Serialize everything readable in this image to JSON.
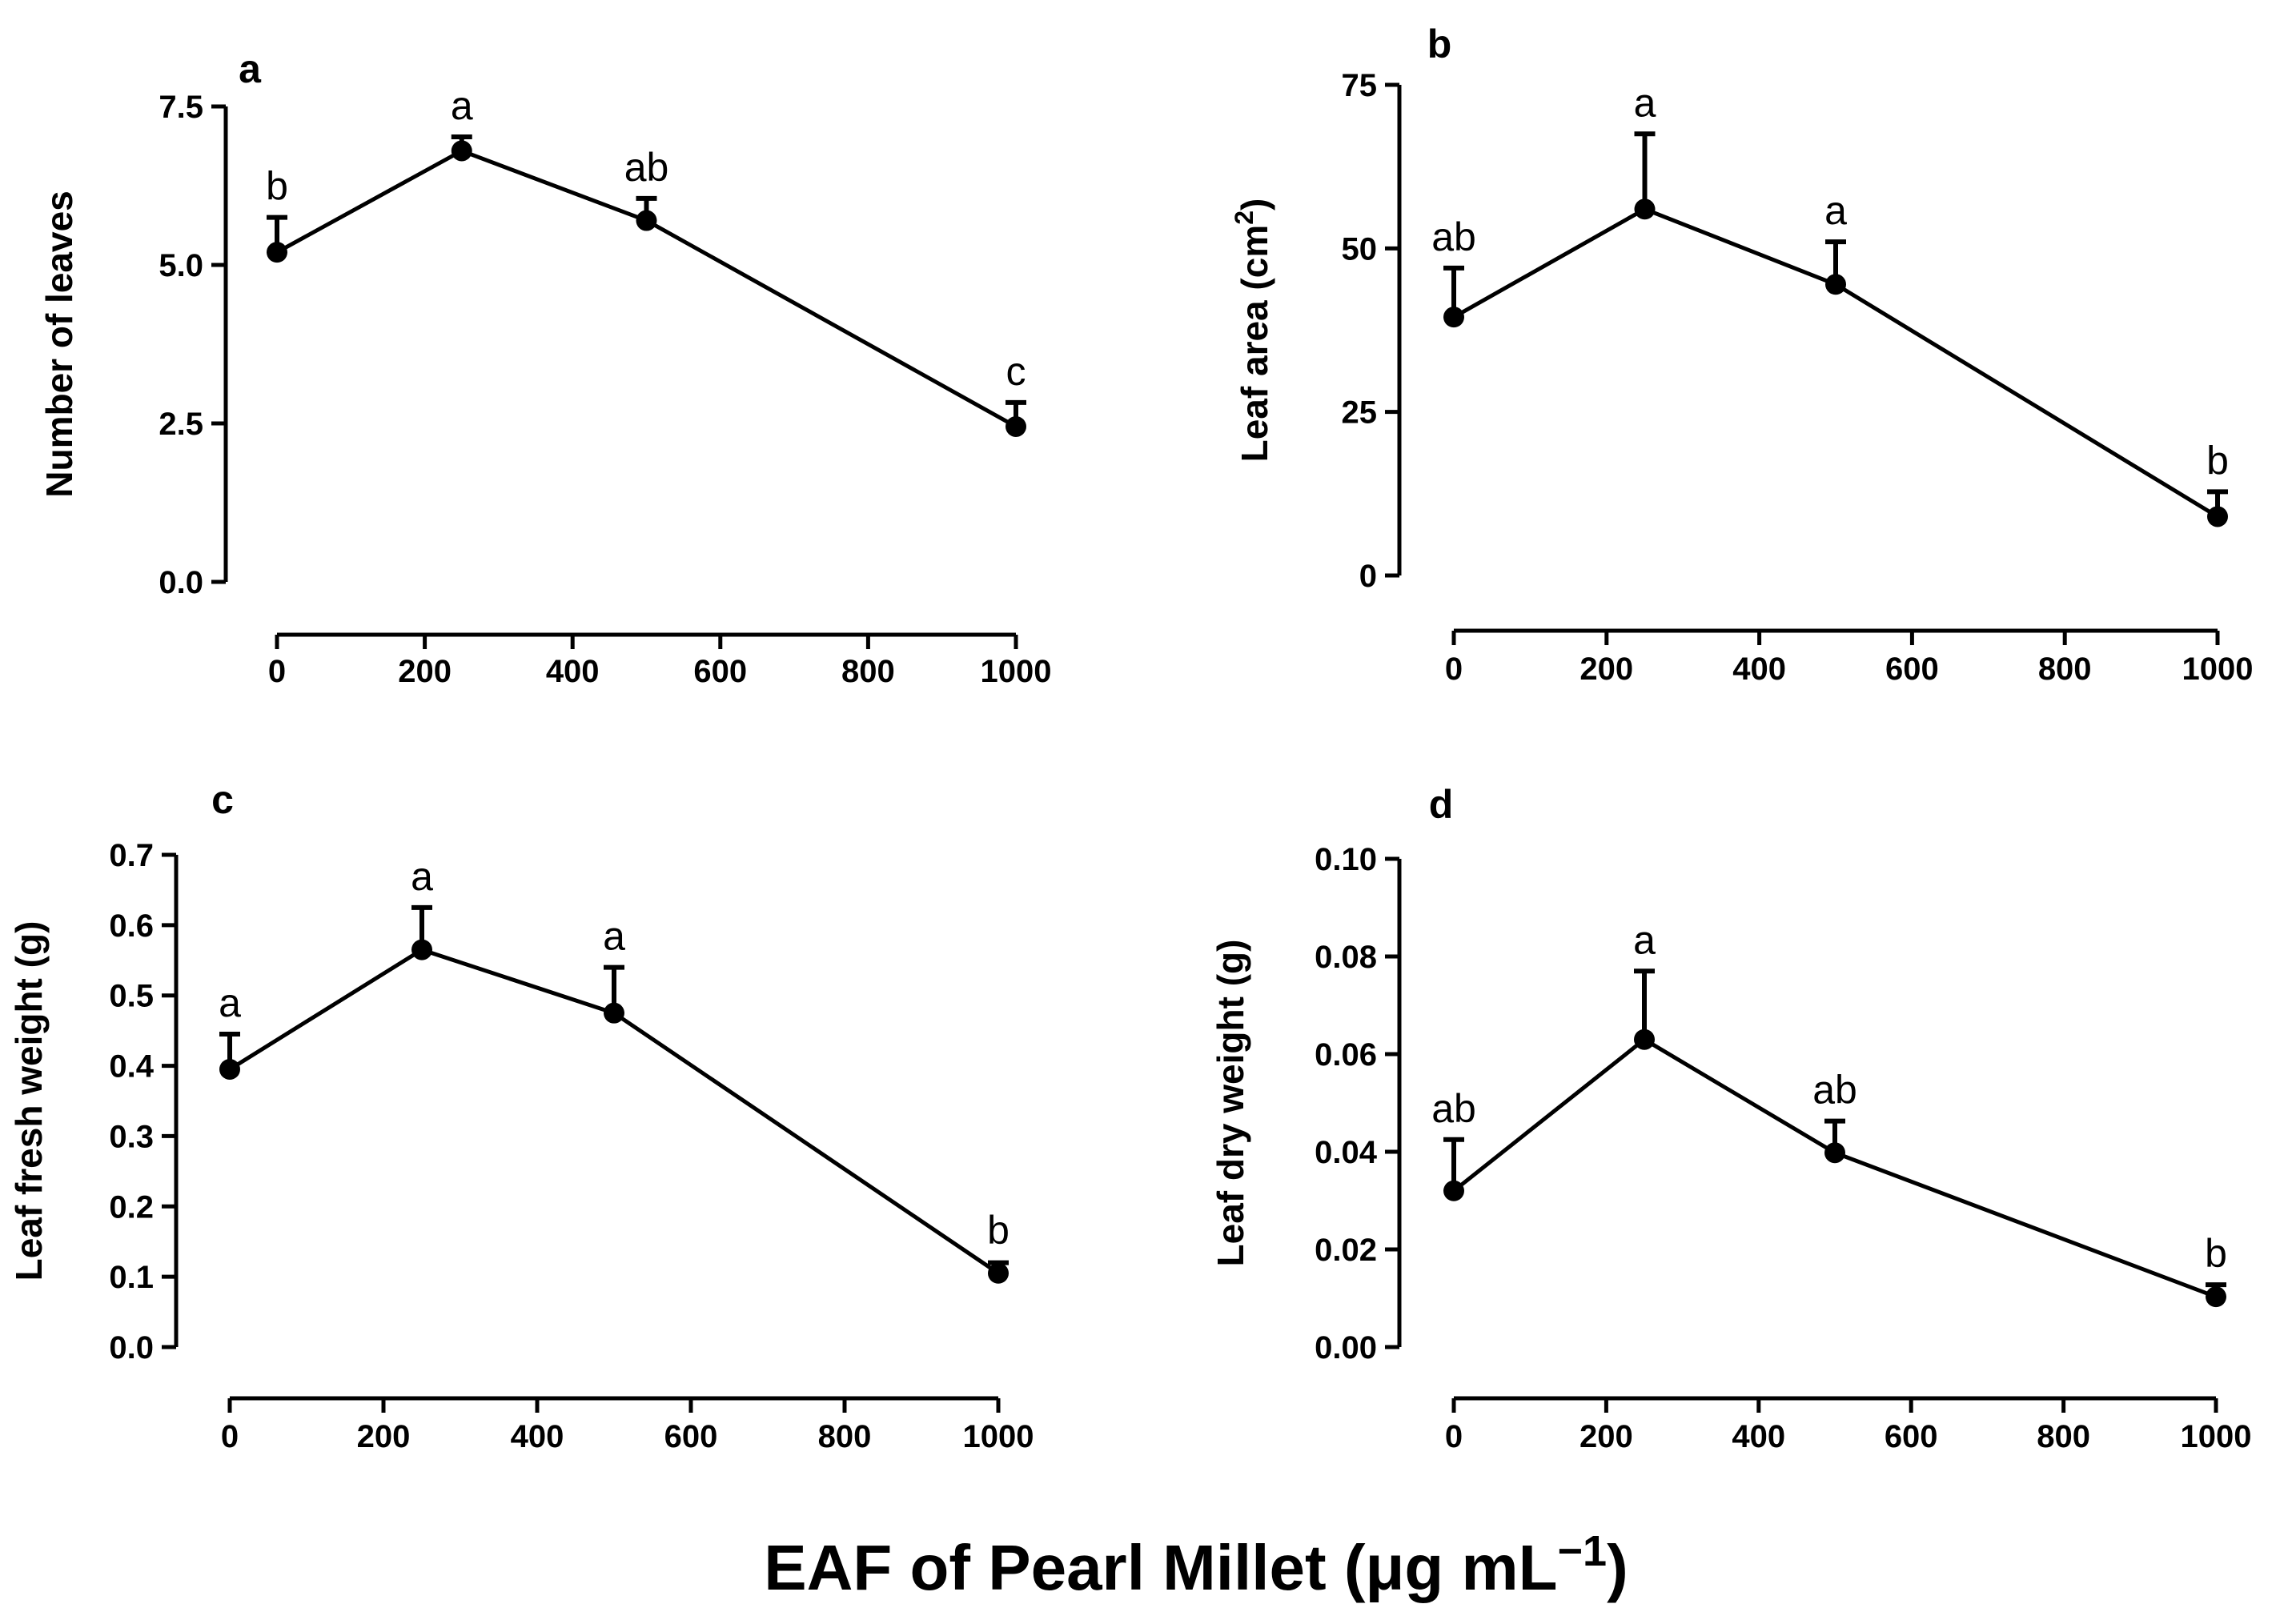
{
  "chart_data": [
    {
      "panel": "a",
      "type": "line",
      "ylabel": "Number of leaves",
      "ylabel_sup": "",
      "ylabel_tail": "",
      "x": [
        0,
        250,
        500,
        1000
      ],
      "values": [
        5.2,
        6.8,
        5.7,
        2.45
      ],
      "errors": [
        0.55,
        0.22,
        0.35,
        0.38
      ],
      "sig_letters": [
        "b",
        "a",
        "ab",
        "c"
      ],
      "ylim": [
        0,
        7.5
      ],
      "yticks": [
        "0.0",
        "2.5",
        "5.0",
        "7.5"
      ],
      "xlim": [
        0,
        1000
      ],
      "xticks": [
        "0",
        "200",
        "400",
        "600",
        "800",
        "1000"
      ]
    },
    {
      "panel": "b",
      "type": "line",
      "ylabel": "Leaf area (cm",
      "ylabel_sup": "2",
      "ylabel_tail": ")",
      "x": [
        0,
        250,
        500,
        1000
      ],
      "values": [
        39.5,
        56,
        44.5,
        9
      ],
      "errors": [
        7.5,
        11.5,
        6.5,
        3.8
      ],
      "sig_letters": [
        "ab",
        "a",
        "a",
        "b"
      ],
      "ylim": [
        0,
        75
      ],
      "yticks": [
        "0",
        "25",
        "50",
        "75"
      ],
      "xlim": [
        0,
        1000
      ],
      "xticks": [
        "0",
        "200",
        "400",
        "600",
        "800",
        "1000"
      ]
    },
    {
      "panel": "c",
      "type": "line",
      "ylabel": "Leaf fresh weight (g)",
      "ylabel_sup": "",
      "ylabel_tail": "",
      "x": [
        0,
        250,
        500,
        1000
      ],
      "values": [
        0.395,
        0.565,
        0.475,
        0.105
      ],
      "errors": [
        0.05,
        0.06,
        0.065,
        0.015
      ],
      "sig_letters": [
        "a",
        "a",
        "a",
        "b"
      ],
      "ylim": [
        0,
        0.7
      ],
      "yticks": [
        "0.0",
        "0.1",
        "0.2",
        "0.3",
        "0.4",
        "0.5",
        "0.6",
        "0.7"
      ],
      "xlim": [
        0,
        1000
      ],
      "xticks": [
        "0",
        "200",
        "400",
        "600",
        "800",
        "1000"
      ]
    },
    {
      "panel": "d",
      "type": "line",
      "ylabel": "Leaf dry weight (g)",
      "ylabel_sup": "",
      "ylabel_tail": "",
      "x": [
        0,
        250,
        500,
        1000
      ],
      "values": [
        0.032,
        0.063,
        0.0398,
        0.0103
      ],
      "errors": [
        0.0105,
        0.014,
        0.0065,
        0.0
      ],
      "sig_letters": [
        "ab",
        "a",
        "ab",
        "b"
      ],
      "ylim": [
        0,
        0.1
      ],
      "yticks": [
        "0.00",
        "0.02",
        "0.04",
        "0.06",
        "0.08",
        "0.10"
      ],
      "xlim": [
        0,
        1000
      ],
      "xticks": [
        "0",
        "200",
        "400",
        "600",
        "800",
        "1000"
      ]
    }
  ],
  "xaxis_title": {
    "prefix": "EAF of Pearl Millet (",
    "mu": "μ",
    "unit": "g mL",
    "sup": "−1",
    "suffix": ")"
  }
}
